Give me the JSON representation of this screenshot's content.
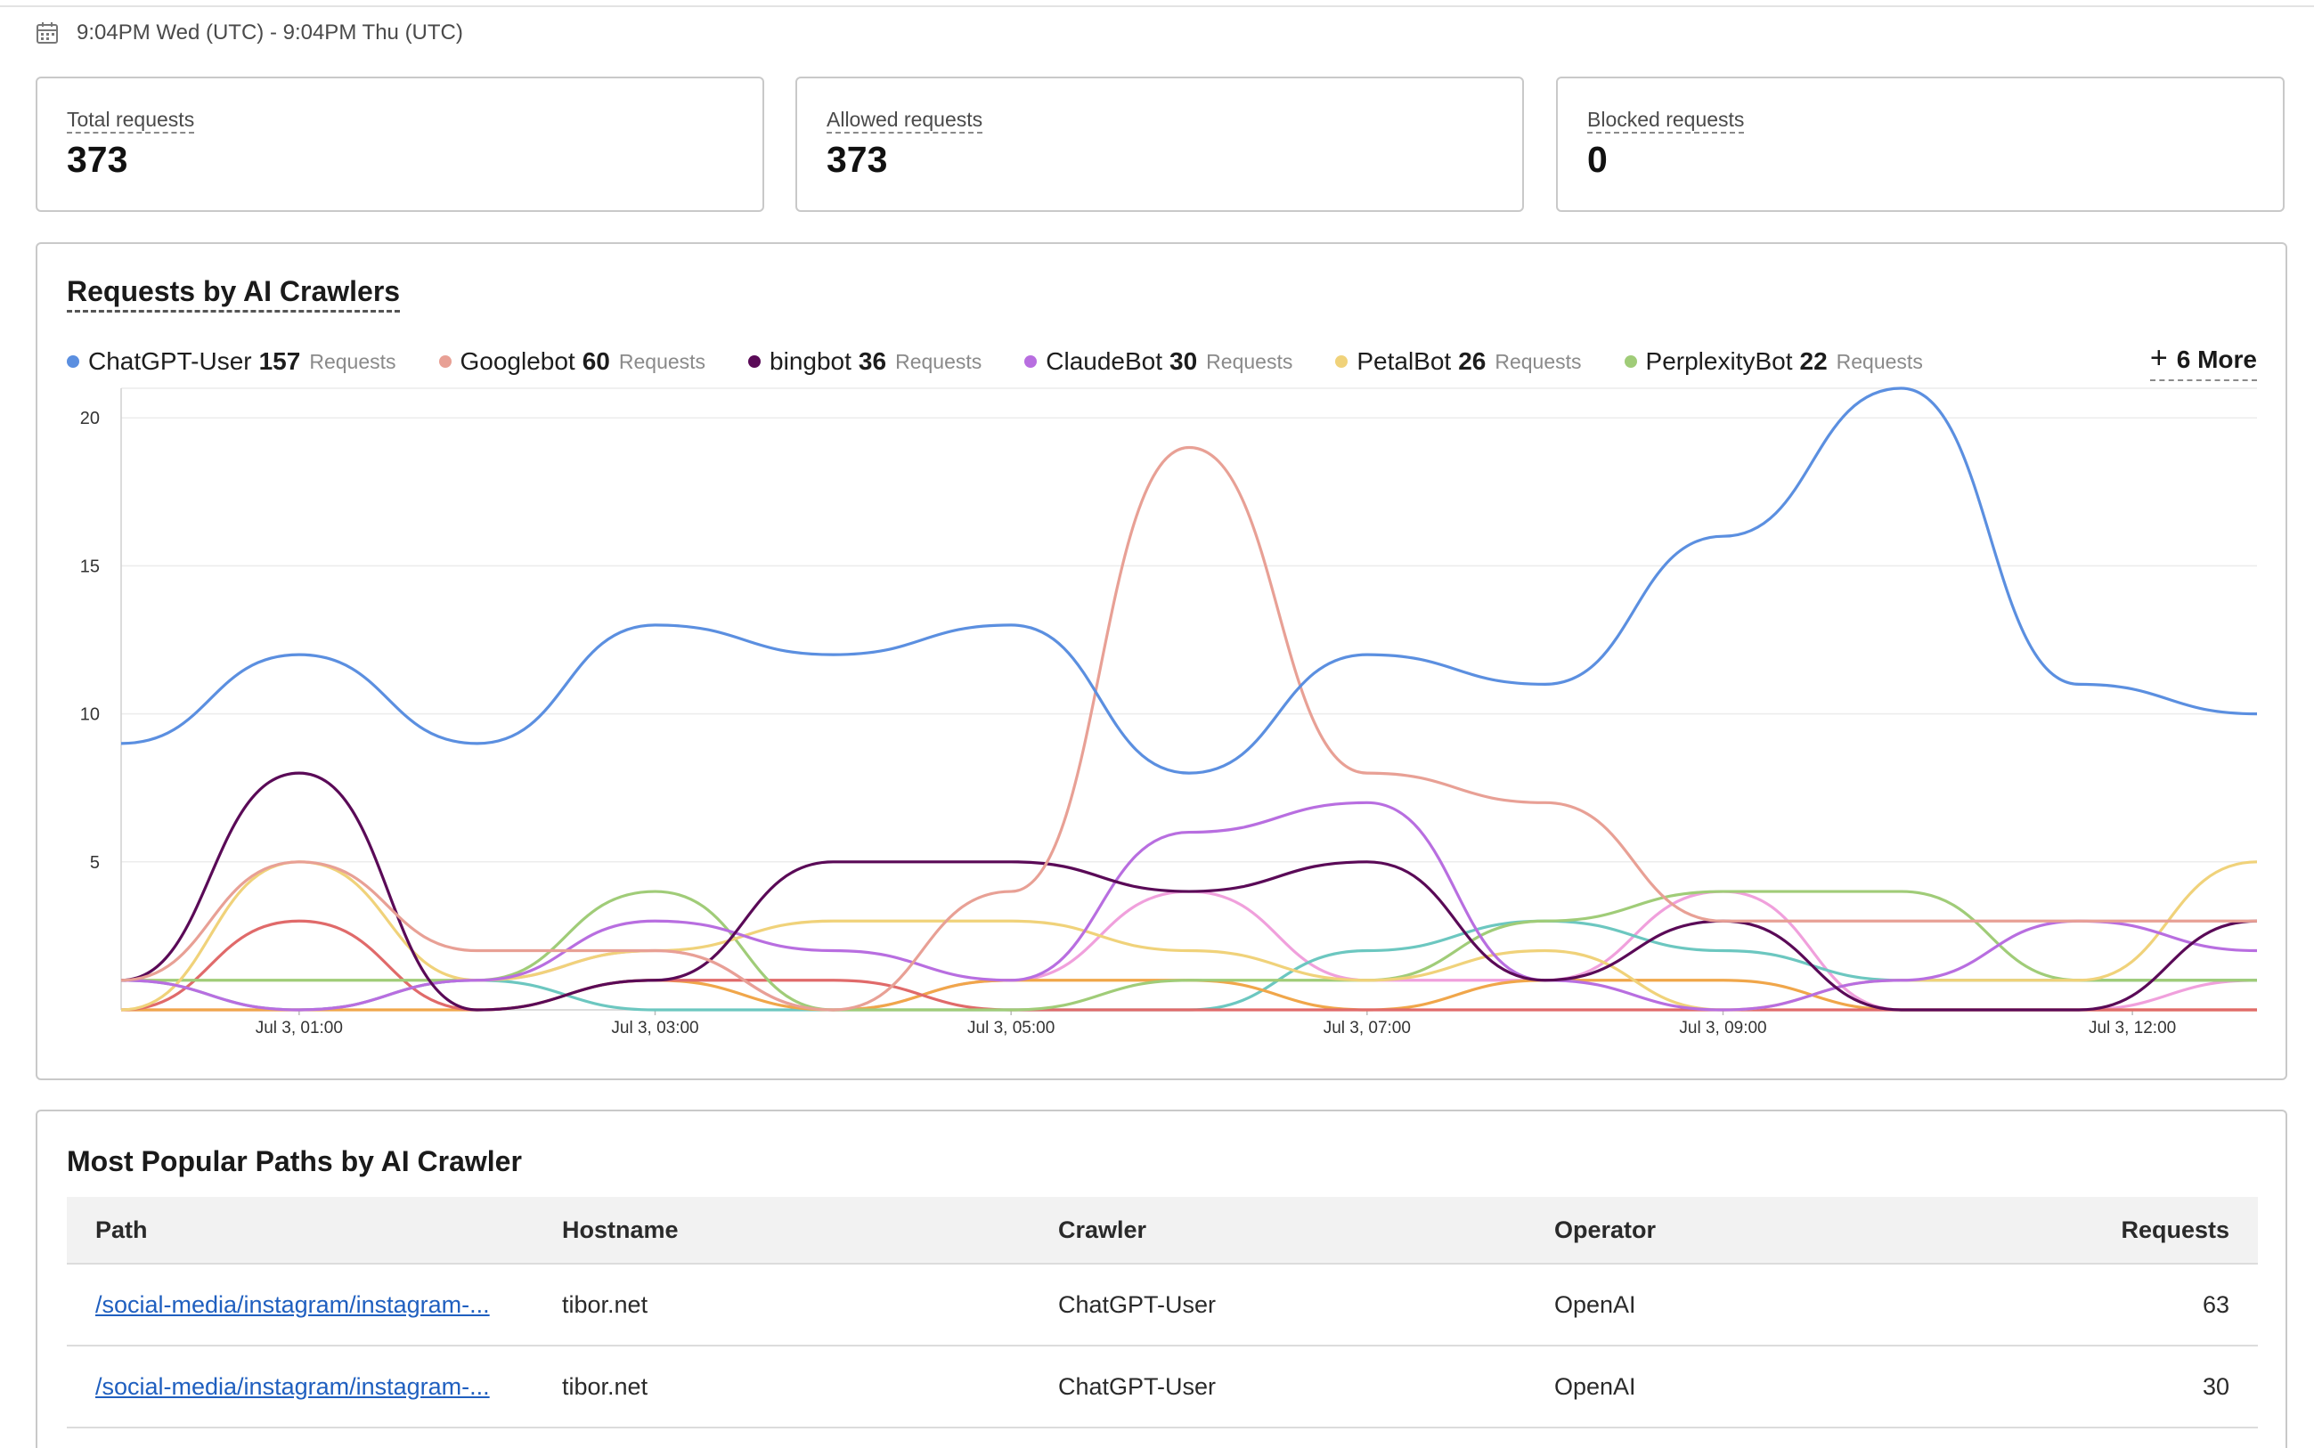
{
  "header": {
    "date_range": "9:04PM Wed (UTC) - 9:04PM Thu (UTC)",
    "calendar_icon": "calendar-icon"
  },
  "stats": [
    {
      "label": "Total requests",
      "value": "373"
    },
    {
      "label": "Allowed requests",
      "value": "373"
    },
    {
      "label": "Blocked requests",
      "value": "0"
    }
  ],
  "crawler_chart": {
    "title": "Requests by AI Crawlers",
    "legend": [
      {
        "name": "ChatGPT-User",
        "count": "157",
        "unit": "Requests",
        "color": "#5b8fe0"
      },
      {
        "name": "Googlebot",
        "count": "60",
        "unit": "Requests",
        "color": "#e8a095"
      },
      {
        "name": "bingbot",
        "count": "36",
        "unit": "Requests",
        "color": "#5a0a57"
      },
      {
        "name": "ClaudeBot",
        "count": "30",
        "unit": "Requests",
        "color": "#b86ee0"
      },
      {
        "name": "PetalBot",
        "count": "26",
        "unit": "Requests",
        "color": "#f0d27a"
      },
      {
        "name": "PerplexityBot",
        "count": "22",
        "unit": "Requests",
        "color": "#a0cc78"
      }
    ],
    "more_label": "6 More"
  },
  "chart_data": {
    "type": "line",
    "title": "Requests by AI Crawlers",
    "xlabel": "",
    "ylabel": "",
    "x_ticks": [
      "Jul 3, 01:00",
      "Jul 3, 03:00",
      "Jul 3, 05:00",
      "Jul 3, 07:00",
      "Jul 3, 09:00",
      "Jul 3, 12:00"
    ],
    "y_ticks": [
      5,
      10,
      15,
      20
    ],
    "ylim": [
      0,
      21
    ],
    "x": [
      "Jul 3, 00:00",
      "Jul 3, 01:00",
      "Jul 3, 02:00",
      "Jul 3, 03:00",
      "Jul 3, 04:00",
      "Jul 3, 05:00",
      "Jul 3, 06:00",
      "Jul 3, 07:00",
      "Jul 3, 08:00",
      "Jul 3, 09:00",
      "Jul 3, 10:00",
      "Jul 3, 11:00",
      "Jul 3, 12:00"
    ],
    "grid": true,
    "series": [
      {
        "name": "ChatGPT-User",
        "color": "#5b8fe0",
        "values": [
          9,
          12,
          9,
          13,
          12,
          13,
          8,
          12,
          11,
          16,
          21,
          11,
          10
        ]
      },
      {
        "name": "Googlebot",
        "color": "#e8a095",
        "values": [
          1,
          5,
          2,
          2,
          0,
          4,
          19,
          8,
          7,
          3,
          3,
          3,
          3
        ]
      },
      {
        "name": "bingbot",
        "color": "#5a0a57",
        "values": [
          1,
          8,
          0,
          1,
          5,
          5,
          4,
          5,
          1,
          3,
          0,
          0,
          3
        ]
      },
      {
        "name": "ClaudeBot",
        "color": "#b86ee0",
        "values": [
          1,
          0,
          1,
          3,
          2,
          1,
          6,
          7,
          1,
          0,
          1,
          3,
          2
        ]
      },
      {
        "name": "PetalBot",
        "color": "#f0d27a",
        "values": [
          0,
          5,
          1,
          2,
          3,
          3,
          2,
          1,
          2,
          0,
          1,
          1,
          5
        ]
      },
      {
        "name": "PerplexityBot",
        "color": "#a0cc78",
        "values": [
          1,
          1,
          1,
          4,
          0,
          0,
          1,
          1,
          3,
          4,
          4,
          1,
          1
        ]
      },
      {
        "name": "",
        "color": "#e06a6a",
        "values": [
          0,
          3,
          0,
          1,
          1,
          0,
          0,
          0,
          0,
          0,
          0,
          0,
          0
        ]
      },
      {
        "name": "",
        "color": "#f0a64a",
        "values": [
          0,
          0,
          0,
          1,
          0,
          1,
          1,
          0,
          1,
          1,
          0,
          0,
          0
        ]
      },
      {
        "name": "",
        "color": "#6cc7c0",
        "values": [
          1,
          0,
          1,
          0,
          0,
          0,
          0,
          2,
          3,
          2,
          1,
          1,
          1
        ]
      },
      {
        "name": "",
        "color": "#f0a0dc",
        "values": [
          0,
          0,
          1,
          2,
          0,
          1,
          4,
          1,
          1,
          4,
          0,
          0,
          1
        ]
      }
    ]
  },
  "paths_table": {
    "title": "Most Popular Paths by AI Crawler",
    "columns": [
      "Path",
      "Hostname",
      "Crawler",
      "Operator",
      "Requests"
    ],
    "rows": [
      {
        "path": "/social-media/instagram/instagram-...",
        "hostname": "tibor.net",
        "crawler": "ChatGPT-User",
        "operator": "OpenAI",
        "requests": "63"
      },
      {
        "path": "/social-media/instagram/instagram-...",
        "hostname": "tibor.net",
        "crawler": "ChatGPT-User",
        "operator": "OpenAI",
        "requests": "30"
      }
    ]
  }
}
